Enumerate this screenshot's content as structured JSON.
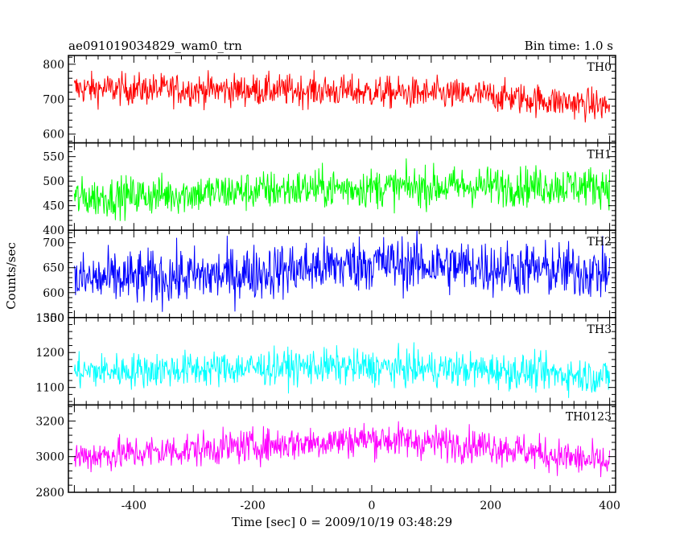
{
  "chart_data": {
    "type": "line",
    "title": "ae091019034829_wam0_trn",
    "bin_time": "Bin time: 1.0 s",
    "xlabel": "Time [sec] 0 = 2009/10/19 03:48:29",
    "ylabel": "Counts/sec",
    "xlim": [
      -510,
      410
    ],
    "x_range_data": [
      -500,
      400
    ],
    "x_ticks": [
      -400,
      -200,
      0,
      200,
      400
    ],
    "grid": false,
    "panels": [
      {
        "name": "TH0",
        "color": "#ff0000",
        "ylim": [
          575,
          825
        ],
        "y_ticks": [
          600,
          700,
          800
        ],
        "mean_trend": [
          [
            -500,
            730
          ],
          [
            -100,
            725
          ],
          [
            200,
            710
          ],
          [
            400,
            680
          ]
        ],
        "noise_range": 90
      },
      {
        "name": "TH1",
        "color": "#00ff00",
        "ylim": [
          400,
          578
        ],
        "y_ticks": [
          400,
          450,
          500,
          550
        ],
        "mean_trend": [
          [
            -500,
            465
          ],
          [
            -100,
            485
          ],
          [
            200,
            490
          ],
          [
            400,
            490
          ]
        ],
        "noise_range": 80
      },
      {
        "name": "TH2",
        "color": "#0000ff",
        "ylim": [
          550,
          725
        ],
        "y_ticks": [
          550,
          600,
          650,
          700
        ],
        "mean_trend": [
          [
            -500,
            625
          ],
          [
            -250,
            635
          ],
          [
            0,
            660
          ],
          [
            200,
            650
          ],
          [
            400,
            640
          ]
        ],
        "noise_range": 110
      },
      {
        "name": "TH3",
        "color": "#00ffff",
        "ylim": [
          1050,
          1300
        ],
        "y_ticks": [
          1100,
          1200,
          1300
        ],
        "mean_trend": [
          [
            -500,
            1145
          ],
          [
            -100,
            1160
          ],
          [
            200,
            1150
          ],
          [
            400,
            1130
          ]
        ],
        "noise_range": 100
      },
      {
        "name": "TH0123",
        "color": "#ff00ff",
        "ylim": [
          2800,
          3290
        ],
        "y_ticks": [
          2800,
          3000,
          3200
        ],
        "mean_trend": [
          [
            -500,
            3000
          ],
          [
            -100,
            3080
          ],
          [
            0,
            3100
          ],
          [
            200,
            3060
          ],
          [
            400,
            2960
          ]
        ],
        "noise_range": 190
      }
    ]
  }
}
